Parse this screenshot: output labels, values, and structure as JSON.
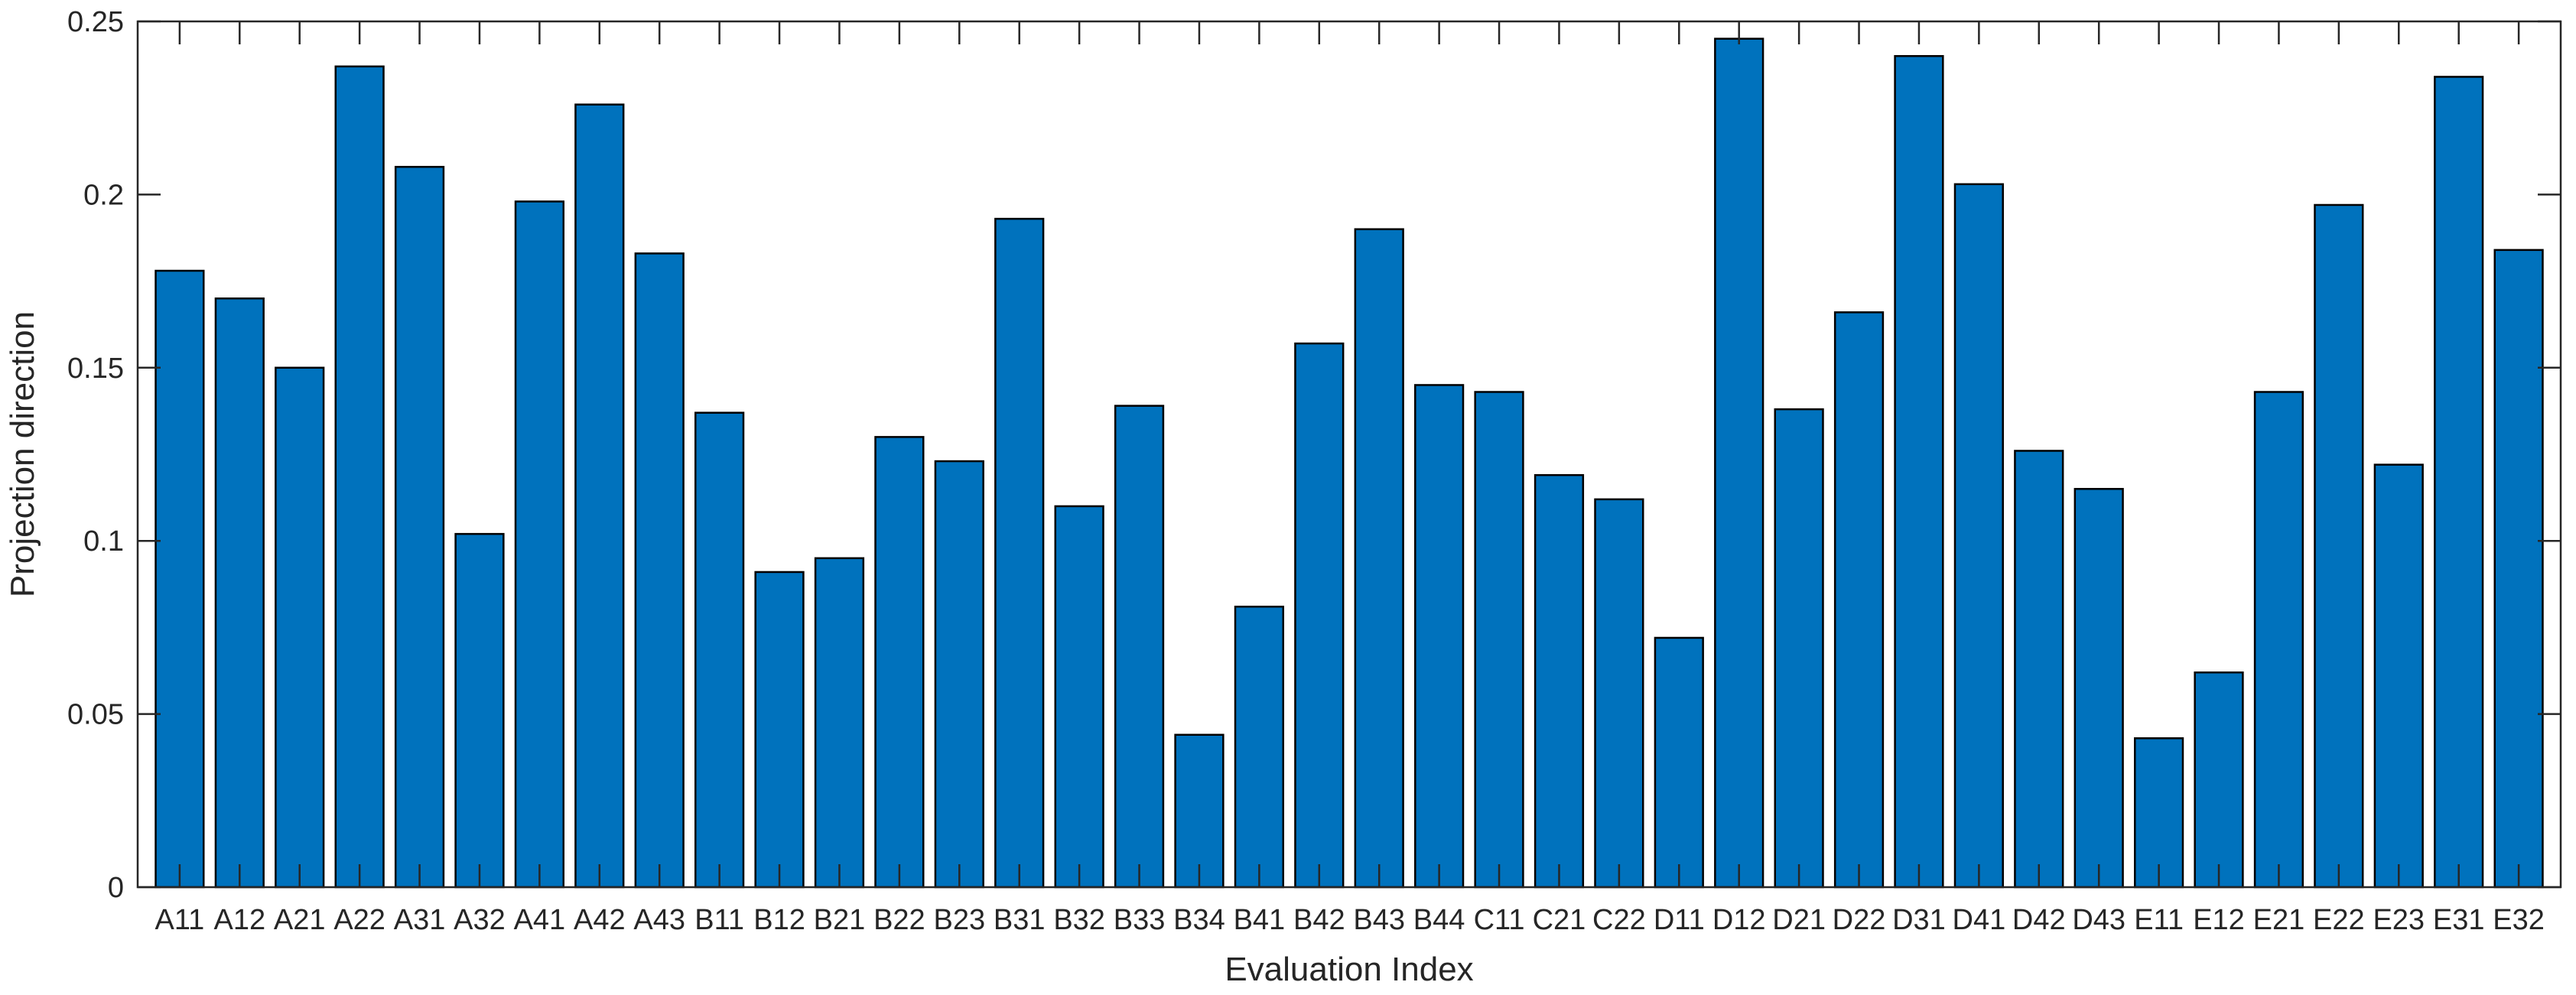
{
  "chart_data": {
    "type": "bar",
    "title": "",
    "xlabel": "Evaluation Index",
    "ylabel": "Projection direction",
    "ylim": [
      0,
      0.25
    ],
    "yticks": [
      0,
      0.05,
      0.1,
      0.15,
      0.2,
      0.25
    ],
    "ytick_labels": [
      "0",
      "0.05",
      "0.1",
      "0.15",
      "0.2",
      "0.25"
    ],
    "grid": false,
    "legend": "none",
    "bar_color": "#0072BD",
    "edge_color": "#000000",
    "categories": [
      "A11",
      "A12",
      "A21",
      "A22",
      "A31",
      "A32",
      "A41",
      "A42",
      "A43",
      "B11",
      "B12",
      "B21",
      "B22",
      "B23",
      "B31",
      "B32",
      "B33",
      "B34",
      "B41",
      "B42",
      "B43",
      "B44",
      "C11",
      "C21",
      "C22",
      "D11",
      "D12",
      "D21",
      "D22",
      "D31",
      "D41",
      "D42",
      "D43",
      "E11",
      "E12",
      "E21",
      "E22",
      "E23",
      "E31",
      "E32"
    ],
    "values": [
      0.178,
      0.17,
      0.15,
      0.237,
      0.208,
      0.102,
      0.198,
      0.226,
      0.183,
      0.137,
      0.091,
      0.095,
      0.13,
      0.123,
      0.193,
      0.11,
      0.139,
      0.044,
      0.081,
      0.157,
      0.19,
      0.145,
      0.143,
      0.119,
      0.112,
      0.072,
      0.245,
      0.138,
      0.166,
      0.24,
      0.203,
      0.126,
      0.115,
      0.043,
      0.062,
      0.143,
      0.197,
      0.122,
      0.234,
      0.184
    ]
  }
}
